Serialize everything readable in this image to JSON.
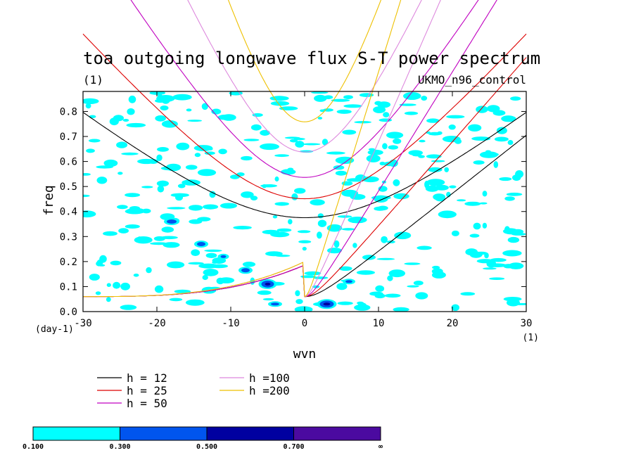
{
  "chart_data": {
    "type": "contour",
    "title": "toa outgoing longwave flux S-T power spectrum",
    "subtitle_left": "(1)",
    "subtitle_right": "UKMO_n96_control",
    "xlabel": "wvn",
    "ylabel": "freq",
    "x_unit_label": "(1)",
    "y_unit_label": "(day-1)",
    "xlim": [
      -30,
      30
    ],
    "ylim": [
      0,
      0.88
    ],
    "xticks": [
      -30,
      -20,
      -10,
      0,
      10,
      20,
      30
    ],
    "yticks": [
      "0.0",
      "0.1",
      "0.2",
      "0.3",
      "0.4",
      "0.5",
      "0.6",
      "0.7",
      "0.8"
    ],
    "colorbar": {
      "levels": [
        "0.100",
        "0.300",
        "0.500",
        "0.700",
        "∞"
      ],
      "colors": [
        "#00ffff",
        "#0055ee",
        "#0000a0",
        "#4b0aa0"
      ]
    },
    "dispersion_curves": [
      {
        "label": "h = 12",
        "h": 12,
        "color": "#000000"
      },
      {
        "label": "h = 25",
        "h": 25,
        "color": "#dd0000"
      },
      {
        "label": "h = 50",
        "h": 50,
        "color": "#c000c0"
      },
      {
        "label": "h =100",
        "h": 100,
        "color": "#dd88dd"
      },
      {
        "label": "h =200",
        "h": 200,
        "color": "#eec000"
      }
    ]
  }
}
